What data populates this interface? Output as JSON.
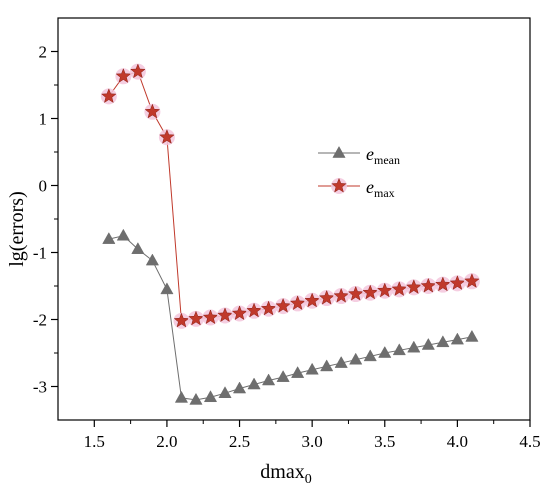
{
  "chart_data": {
    "type": "line",
    "xlabel": "dmax",
    "xlabel_sub": "0",
    "ylabel": "lg(errors)",
    "xlim": [
      1.25,
      4.5
    ],
    "ylim": [
      -3.5,
      2.5
    ],
    "x_ticks": [
      "1.5",
      "2.0",
      "2.5",
      "3.0",
      "3.5",
      "4.0",
      "4.5"
    ],
    "y_ticks": [
      "-3",
      "-2",
      "-1",
      "0",
      "1",
      "2"
    ],
    "grid": false,
    "legend_position": "right-center",
    "x": [
      1.6,
      1.7,
      1.8,
      1.9,
      2.0,
      2.1,
      2.2,
      2.3,
      2.4,
      2.5,
      2.6,
      2.7,
      2.8,
      2.9,
      3.0,
      3.1,
      3.2,
      3.3,
      3.4,
      3.5,
      3.6,
      3.7,
      3.8,
      3.9,
      4.0,
      4.1
    ],
    "series": [
      {
        "name": "e",
        "name_sub": "mean",
        "marker": "triangle",
        "color": "#6e6e6e",
        "values": [
          -0.8,
          -0.75,
          -0.95,
          -1.12,
          -1.55,
          -3.17,
          -3.2,
          -3.16,
          -3.1,
          -3.03,
          -2.97,
          -2.91,
          -2.86,
          -2.8,
          -2.75,
          -2.7,
          -2.65,
          -2.6,
          -2.55,
          -2.5,
          -2.46,
          -2.42,
          -2.38,
          -2.34,
          -2.3,
          -2.26
        ]
      },
      {
        "name": "e",
        "name_sub": "max",
        "marker": "star",
        "color": "#c0392b",
        "values": [
          1.33,
          1.63,
          1.7,
          1.1,
          0.72,
          -2.02,
          -1.99,
          -1.97,
          -1.94,
          -1.91,
          -1.87,
          -1.84,
          -1.8,
          -1.76,
          -1.72,
          -1.68,
          -1.65,
          -1.62,
          -1.6,
          -1.57,
          -1.55,
          -1.52,
          -1.5,
          -1.48,
          -1.46,
          -1.43
        ]
      }
    ]
  }
}
